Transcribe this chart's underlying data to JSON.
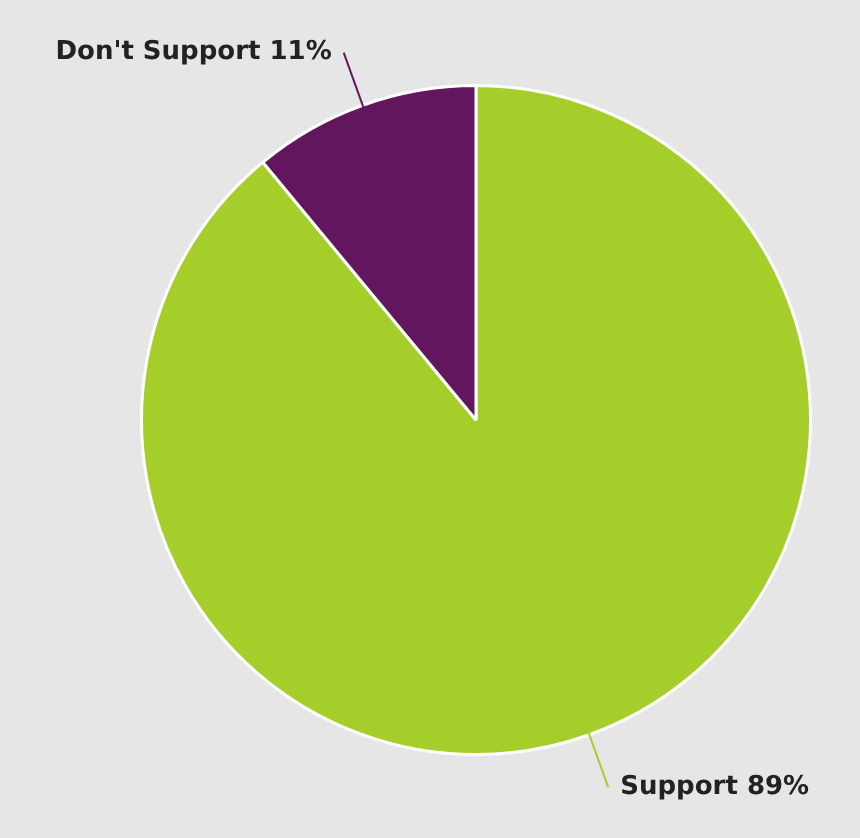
{
  "chart_data": {
    "type": "pie",
    "categories": [
      "Support",
      "Don't Support"
    ],
    "values": [
      89,
      11
    ],
    "colors": [
      "#a6ce2a",
      "#62165e"
    ],
    "value_labels": [
      "89%",
      "11%"
    ],
    "legend": false
  }
}
